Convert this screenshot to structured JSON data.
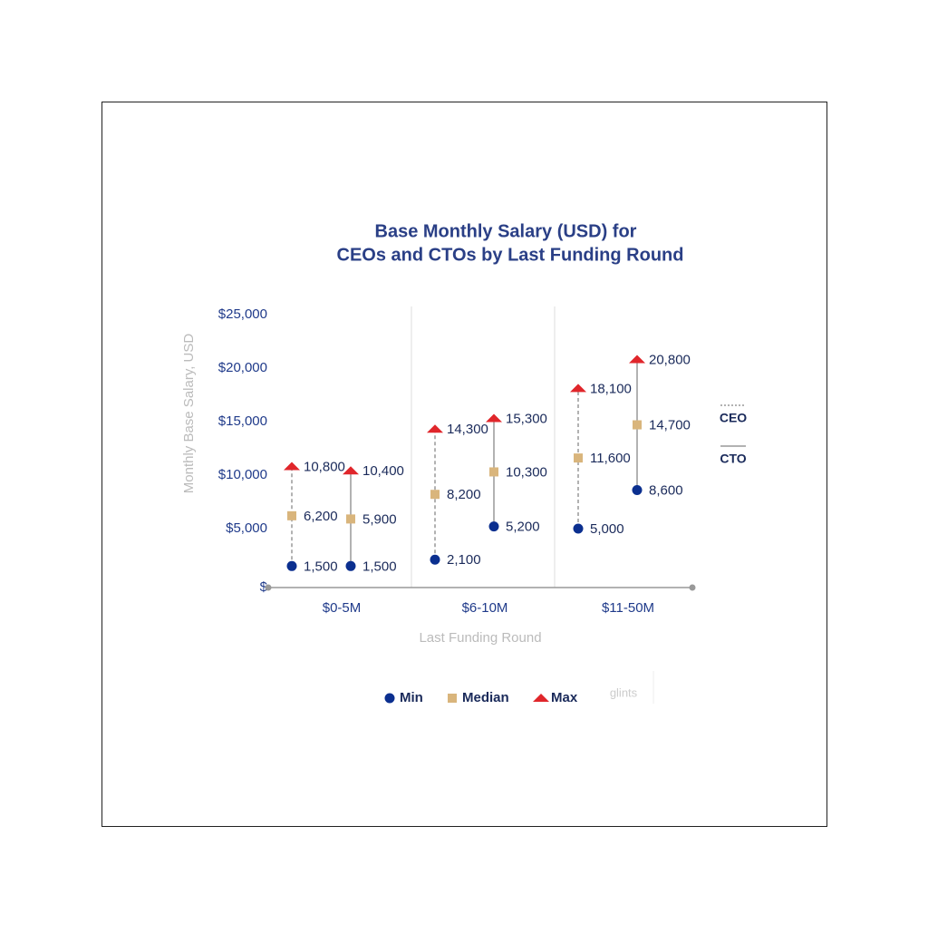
{
  "chart_data": {
    "type": "range-dot",
    "title": [
      "Base Monthly Salary (USD) for",
      "CEOs and CTOs by Last Funding Round"
    ],
    "ylabel": "Monthly Base Salary, USD",
    "xlabel": "Last Funding Round",
    "categories": [
      "$0-5M",
      "$6-10M",
      "$11-50M"
    ],
    "ylim": [
      0,
      25000
    ],
    "yticks": [
      {
        "value": 0,
        "label": "$"
      },
      {
        "value": 5000,
        "label": "$5,000"
      },
      {
        "value": 10000,
        "label": "$10,000"
      },
      {
        "value": 15000,
        "label": "$15,000"
      },
      {
        "value": 20000,
        "label": "$20,000"
      },
      {
        "value": 25000,
        "label": "$25,000"
      }
    ],
    "legend": [
      {
        "name": "Min",
        "color": "#0b2f8f",
        "marker": "circle"
      },
      {
        "name": "Median",
        "color": "#d9b57c",
        "marker": "square"
      },
      {
        "name": "Max",
        "color": "#e0262b",
        "marker": "triangle"
      }
    ],
    "groups": [
      {
        "name": "CEO",
        "line": "dotted",
        "series": [
          {
            "name": "Min",
            "values": [
              1500,
              2100,
              5000
            ],
            "value_labels": [
              "1,500",
              "2,100",
              "5,000"
            ]
          },
          {
            "name": "Median",
            "values": [
              6200,
              8200,
              11600
            ],
            "value_labels": [
              "6,200",
              "8,200",
              "11,600"
            ]
          },
          {
            "name": "Max",
            "values": [
              10800,
              14300,
              18100
            ],
            "value_labels": [
              "10,800",
              "14,300",
              "18,100"
            ]
          }
        ]
      },
      {
        "name": "CTO",
        "line": "solid",
        "series": [
          {
            "name": "Min",
            "values": [
              1500,
              5200,
              8600
            ],
            "value_labels": [
              "1,500",
              "5,200",
              "8,600"
            ]
          },
          {
            "name": "Median",
            "values": [
              5900,
              10300,
              14700
            ],
            "value_labels": [
              "5,900",
              "10,300",
              "14,700"
            ]
          },
          {
            "name": "Max",
            "values": [
              10400,
              15300,
              20800
            ],
            "value_labels": [
              "10,400",
              "15,300",
              "20,800"
            ]
          }
        ]
      }
    ],
    "brand": "glints"
  }
}
